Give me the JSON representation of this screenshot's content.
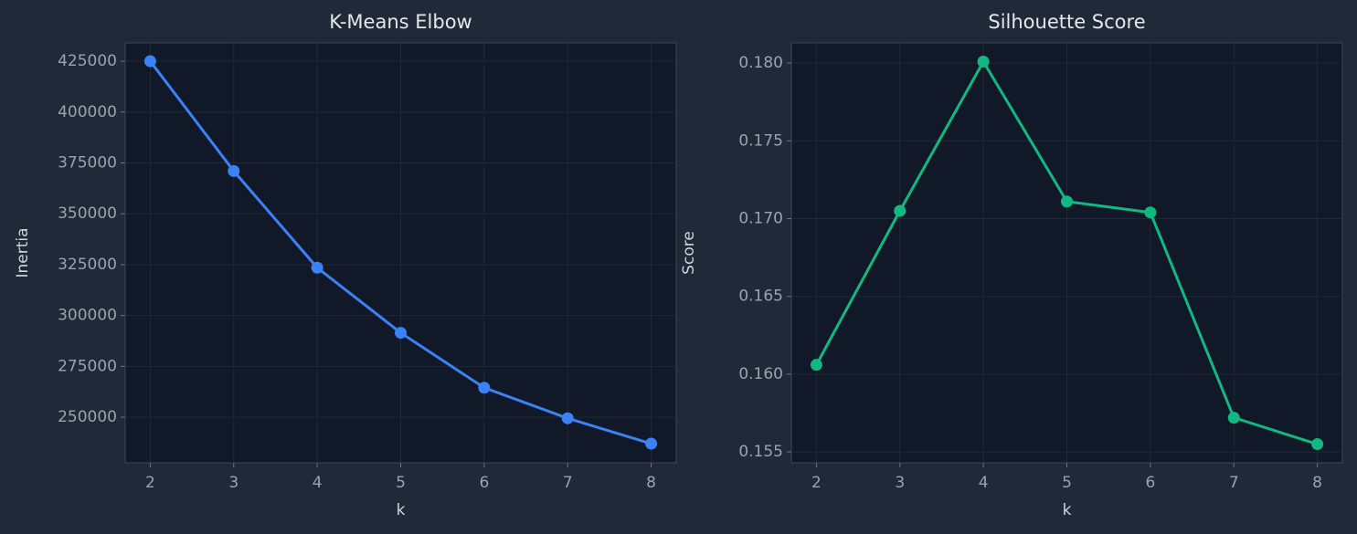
{
  "chart_data": [
    {
      "type": "line",
      "title": "K-Means Elbow",
      "xlabel": "k",
      "ylabel": "Inertia",
      "x": [
        2,
        3,
        4,
        5,
        6,
        7,
        8
      ],
      "series": [
        {
          "color": "#3b82f6",
          "values": [
            425000,
            371000,
            323500,
            291500,
            264500,
            249500,
            237000
          ]
        }
      ],
      "xlim": [
        1.7,
        8.3
      ],
      "xticks": [
        2,
        3,
        4,
        5,
        6,
        7,
        8
      ],
      "ylim": [
        227600,
        434000
      ],
      "yticks": [
        250000,
        275000,
        300000,
        325000,
        350000,
        375000,
        400000,
        425000
      ],
      "grid": true
    },
    {
      "type": "line",
      "title": "Silhouette Score",
      "xlabel": "k",
      "ylabel": "Score",
      "x": [
        2,
        3,
        4,
        5,
        6,
        7,
        8
      ],
      "series": [
        {
          "color": "#10b981",
          "values": [
            0.1606,
            0.1705,
            0.1801,
            0.1711,
            0.1704,
            0.1572,
            0.1555
          ]
        }
      ],
      "xlim": [
        1.7,
        8.3
      ],
      "xticks": [
        2,
        3,
        4,
        5,
        6,
        7,
        8
      ],
      "ylim": [
        0.1543,
        0.1813
      ],
      "yticks": [
        0.155,
        {
          "value": 0.16,
          "label": "0.160"
        },
        0.165,
        {
          "value": 0.17,
          "label": "0.170"
        },
        0.175,
        {
          "value": 0.18,
          "label": "0.180"
        }
      ],
      "grid": true
    }
  ]
}
